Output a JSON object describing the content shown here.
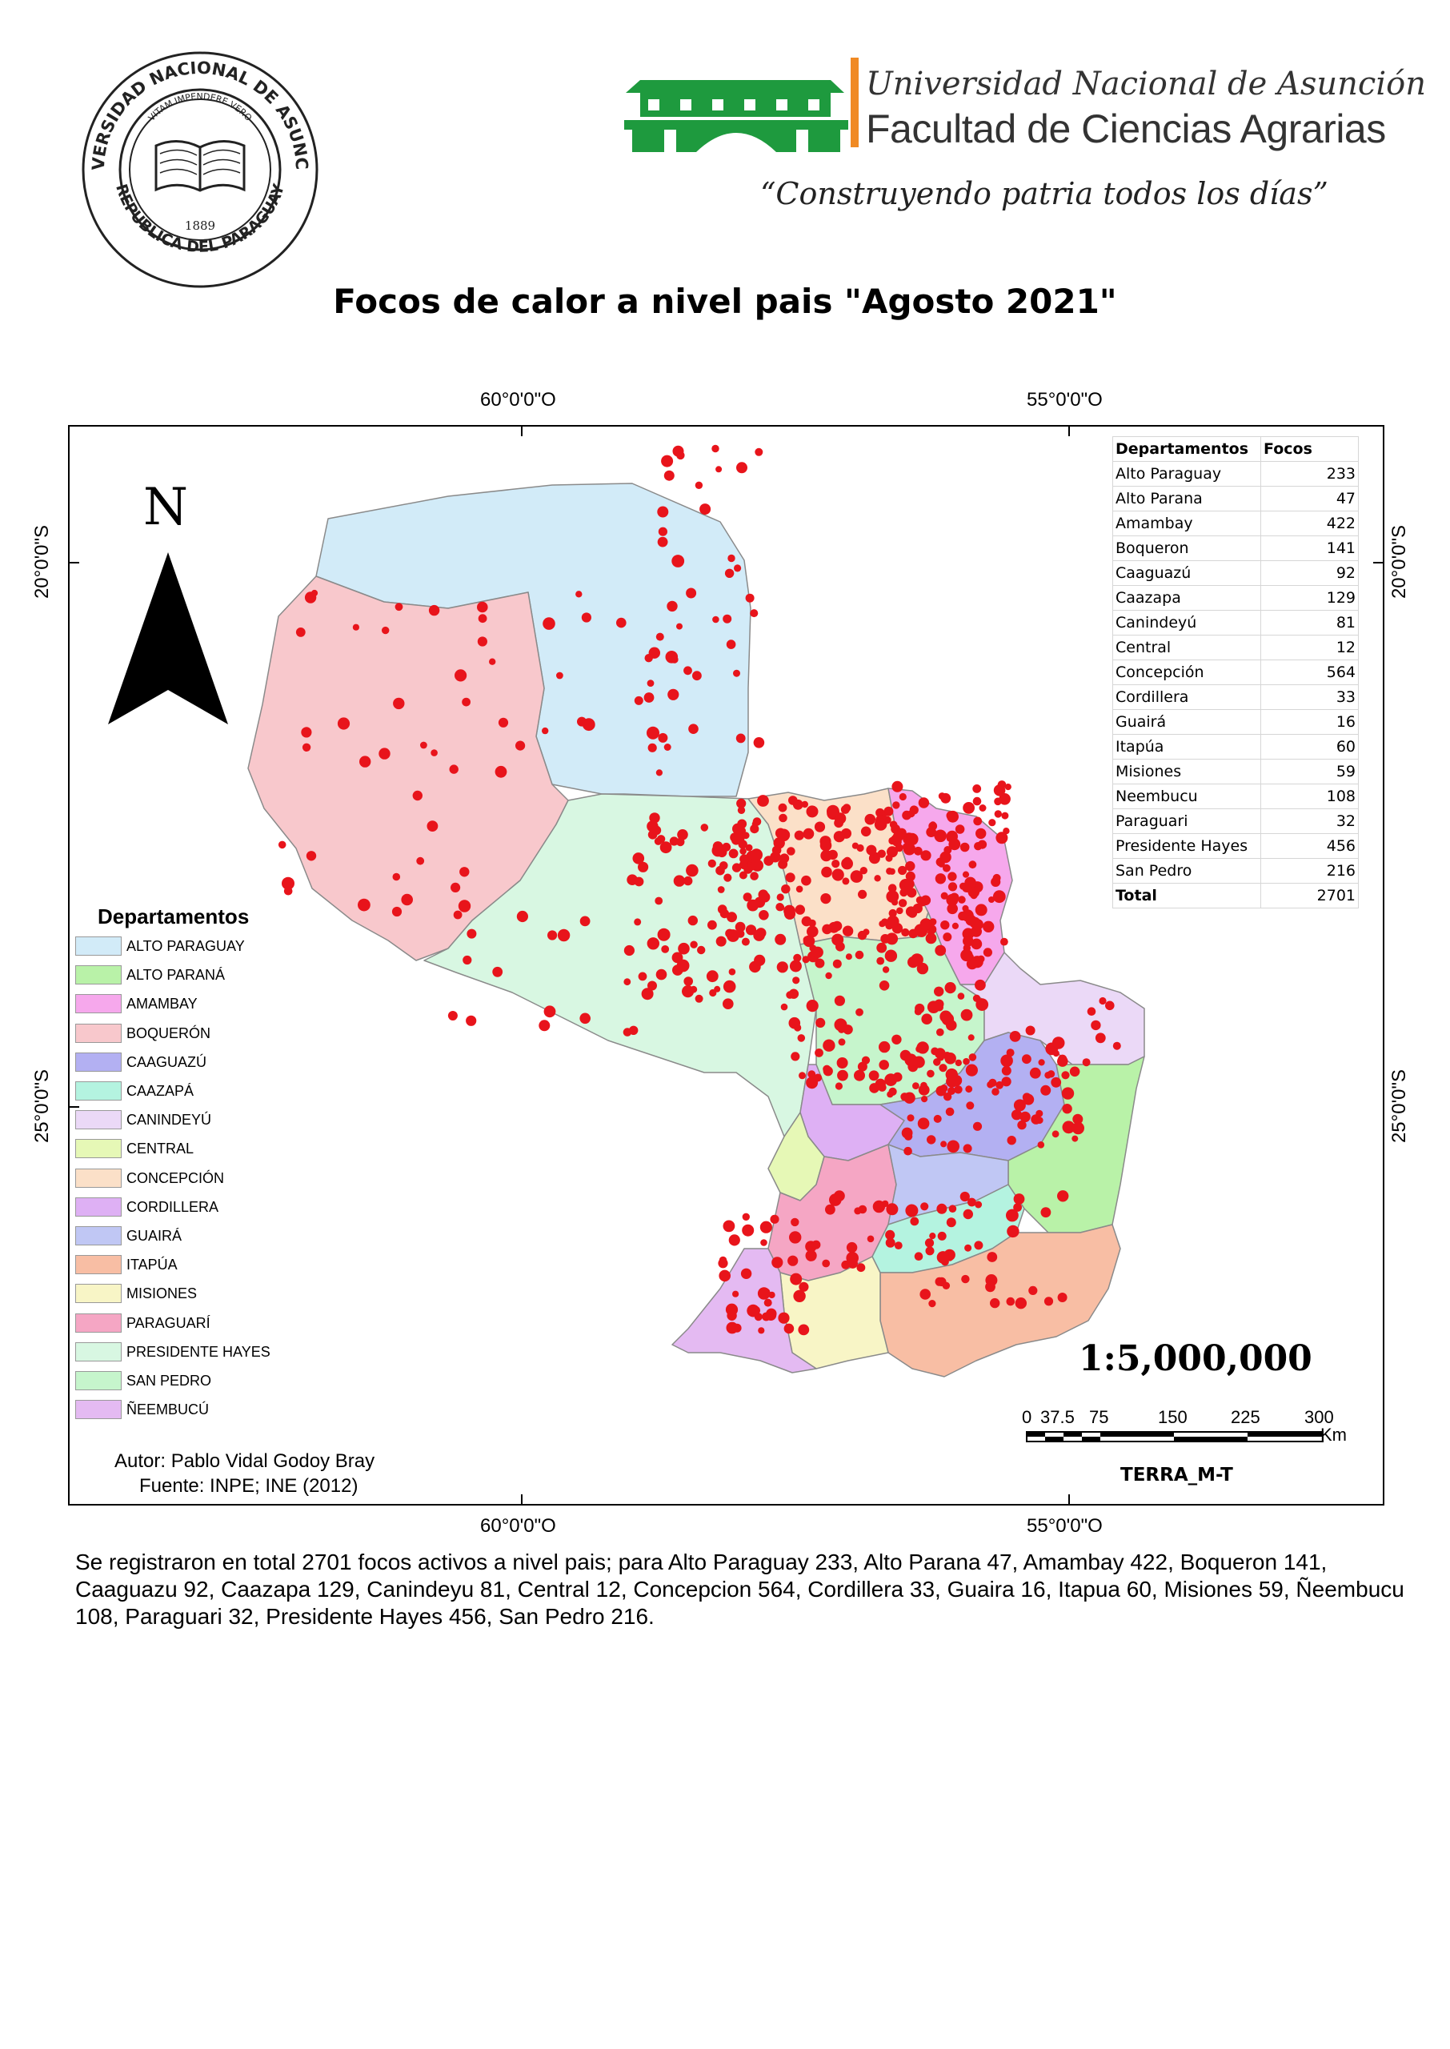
{
  "header": {
    "seal_text": "UNIVERSIDAD NACIONAL DE ASUNCION",
    "seal_motto": "VITAM IMPENDERE VERO",
    "seal_year": "1889",
    "seal_country": "REPUBLICA DEL PARAGUAY",
    "university": "Universidad Nacional de Asunción",
    "faculty": "Facultad de Ciencias Agrarias",
    "motto": "“Construyendo patria todos los días”",
    "logo_color": "#1e9a3e",
    "accent_color": "#f08a24"
  },
  "title": "Focos de calor a nivel pais \"Agosto 2021\"",
  "map": {
    "graticule": {
      "lon_top": [
        "60°0'0\"O",
        "55°0'0\"O"
      ],
      "lon_bottom": [
        "60°0'0\"O",
        "55°0'0\"O"
      ],
      "lat_left": [
        "20°0'0\"S",
        "25°0'0\"S"
      ],
      "lat_right": [
        "20°0'0\"S",
        "25°0'0\"S"
      ]
    },
    "north_label": "N",
    "hotspot_color": "#e8141b"
  },
  "legend": {
    "title": "Departamentos",
    "items": [
      {
        "label": "ALTO PARAGUAY",
        "color": "#d2ebf8"
      },
      {
        "label": "ALTO PARANÁ",
        "color": "#b9f2a8"
      },
      {
        "label": "AMAMBAY",
        "color": "#f6a8ec"
      },
      {
        "label": "BOQUERÓN",
        "color": "#f8c8cc"
      },
      {
        "label": "CAAGUAZÚ",
        "color": "#b3b0f2"
      },
      {
        "label": "CAAZAPÁ",
        "color": "#b4f3e0"
      },
      {
        "label": "CANINDEYÚ",
        "color": "#ebd9f7"
      },
      {
        "label": "CENTRAL",
        "color": "#e6f8b6"
      },
      {
        "label": "CONCEPCIÓN",
        "color": "#fbe0c8"
      },
      {
        "label": "CORDILLERA",
        "color": "#deb0f4"
      },
      {
        "label": "GUAIRÁ",
        "color": "#c0c7f4"
      },
      {
        "label": "ITAPÚA",
        "color": "#f8bea4"
      },
      {
        "label": "MISIONES",
        "color": "#f8f5c6"
      },
      {
        "label": "PARAGUARÍ",
        "color": "#f5a6c4"
      },
      {
        "label": "PRESIDENTE HAYES",
        "color": "#d8f7e2"
      },
      {
        "label": "SAN PEDRO",
        "color": "#c6f5cc"
      },
      {
        "label": "ÑEEMBUCÚ",
        "color": "#e4baf2"
      }
    ]
  },
  "table": {
    "headers": [
      "Departamentos",
      "Focos"
    ],
    "rows": [
      {
        "name": "Alto Paraguay",
        "focos": "233"
      },
      {
        "name": "Alto Parana",
        "focos": "47"
      },
      {
        "name": "Amambay",
        "focos": "422"
      },
      {
        "name": "Boqueron",
        "focos": "141"
      },
      {
        "name": "Caaguazú",
        "focos": "92"
      },
      {
        "name": "Caazapa",
        "focos": "129"
      },
      {
        "name": "Canindeyú",
        "focos": "81"
      },
      {
        "name": "Central",
        "focos": "12"
      },
      {
        "name": "Concepción",
        "focos": "564"
      },
      {
        "name": "Cordillera",
        "focos": "33"
      },
      {
        "name": "Guairá",
        "focos": "16"
      },
      {
        "name": "Itapúa",
        "focos": "60"
      },
      {
        "name": "Misiones",
        "focos": "59"
      },
      {
        "name": "Neembucu",
        "focos": "108"
      },
      {
        "name": "Paraguari",
        "focos": "32"
      },
      {
        "name": "Presidente Hayes",
        "focos": "456"
      },
      {
        "name": "San Pedro",
        "focos": "216"
      }
    ],
    "total_label": "Total",
    "total_value": "2701"
  },
  "scale": {
    "ratio": "1:5,000,000",
    "ticks": [
      "0",
      "37.5",
      "75",
      "150",
      "225",
      "300"
    ],
    "unit": "Km"
  },
  "sensor": "TERRA_M-T",
  "credits": {
    "author": "Autor: Pablo Vidal Godoy Bray",
    "source": "Fuente: INPE; INE (2012)"
  },
  "summary": "Se registraron en total 2701  focos activos a nivel pais; para Alto Paraguay 233, Alto Parana 47, Amambay 422, Boqueron 141, Caaguazu 92, Caazapa 129, Canindeyu 81, Central 12, Concepcion 564, Cordillera 33, Guaira 16, Itapua 60, Misiones 59, Ñeembucu 108, Paraguari 32, Presidente Hayes 456, San Pedro 216."
}
